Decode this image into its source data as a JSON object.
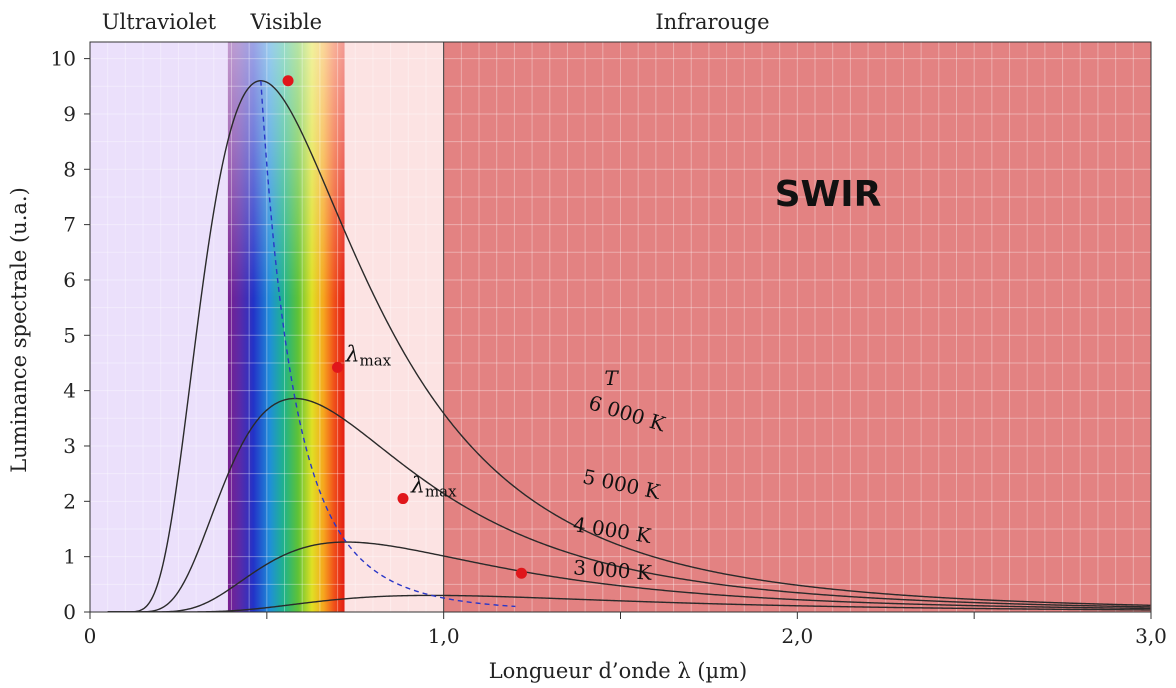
{
  "chart_data": {
    "type": "line",
    "xlabel": "Longueur d’onde λ (µm)",
    "ylabel": "Luminance spectrale (u.a.)",
    "xlim": [
      0,
      3.0
    ],
    "ylim": [
      0,
      10.3
    ],
    "x_ticks": [
      {
        "value": 0,
        "label": "0"
      },
      {
        "value": 1.0,
        "label": "1,0"
      },
      {
        "value": 2.0,
        "label": "2,0"
      },
      {
        "value": 3.0,
        "label": "3,0"
      }
    ],
    "y_ticks": [
      {
        "value": 0,
        "label": "0"
      },
      {
        "value": 1,
        "label": "1"
      },
      {
        "value": 2,
        "label": "2"
      },
      {
        "value": 3,
        "label": "3"
      },
      {
        "value": 4,
        "label": "4"
      },
      {
        "value": 5,
        "label": "5"
      },
      {
        "value": 6,
        "label": "6"
      },
      {
        "value": 7,
        "label": "7"
      },
      {
        "value": 8,
        "label": "8"
      },
      {
        "value": 9,
        "label": "9"
      },
      {
        "value": 10,
        "label": "10"
      }
    ],
    "grid": true,
    "regions": [
      {
        "label": "Ultraviolet",
        "from": 0,
        "to": 0.39,
        "color": "#ebe0fb"
      },
      {
        "label": "Visible",
        "from": 0.39,
        "to": 0.72,
        "color": "spectrum"
      },
      {
        "label": "Infrarouge",
        "from": 0.72,
        "to": 3.0,
        "color": "#fce3e3"
      }
    ],
    "swir_band": {
      "label": "SWIR",
      "from": 1.0,
      "to": 3.0,
      "color": "#e38282"
    },
    "series": [
      {
        "name": "6 000 K",
        "label_prefix": "T",
        "temperature": 6000,
        "peak": {
          "x": 0.56,
          "y": 9.6
        }
      },
      {
        "name": "5 000 K",
        "temperature": 5000,
        "peak": {
          "x": 0.7,
          "y": 4.42
        }
      },
      {
        "name": "4 000 K",
        "temperature": 4000,
        "peak": {
          "x": 0.885,
          "y": 2.05
        }
      },
      {
        "name": "3 000 K",
        "temperature": 3000,
        "peak": {
          "x": 1.22,
          "y": 0.7
        }
      }
    ],
    "wien_locus_label": "λmax",
    "lambda_max_labels": [
      {
        "base": "λ",
        "sub": "max",
        "at_series": 1
      },
      {
        "base": "λ",
        "sub": "max",
        "at_series": 2
      }
    ]
  }
}
